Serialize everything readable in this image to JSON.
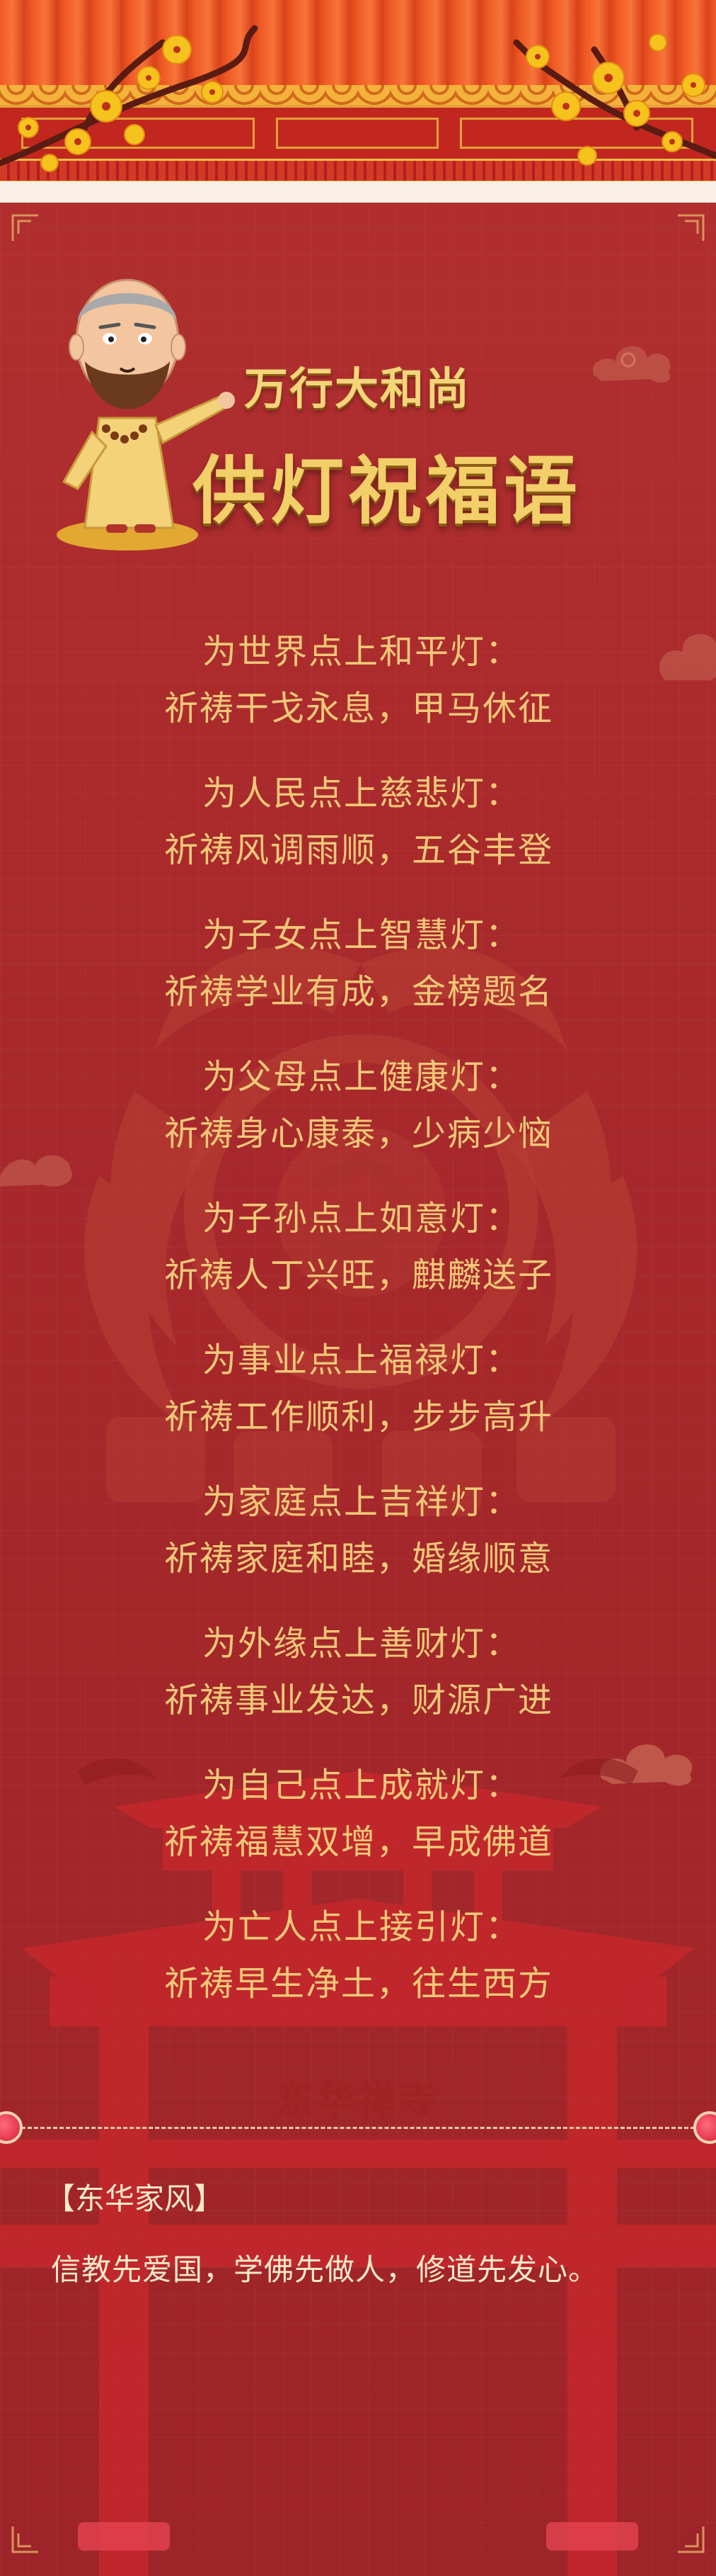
{
  "header": {
    "title_small": "万行大和尚",
    "title_big": "供灯祝福语"
  },
  "blessings": [
    {
      "line1": "为世界点上和平灯：",
      "line2": "祈祷干戈永息，甲马休征"
    },
    {
      "line1": "为人民点上慈悲灯：",
      "line2": "祈祷风调雨顺，五谷丰登"
    },
    {
      "line1": "为子女点上智慧灯：",
      "line2": "祈祷学业有成，金榜题名"
    },
    {
      "line1": "为父母点上健康灯：",
      "line2": "祈祷身心康泰，少病少恼"
    },
    {
      "line1": "为子孙点上如意灯：",
      "line2": "祈祷人丁兴旺，麒麟送子"
    },
    {
      "line1": "为事业点上福禄灯：",
      "line2": "祈祷工作顺利，步步高升"
    },
    {
      "line1": "为家庭点上吉祥灯：",
      "line2": "祈祷家庭和睦，婚缘顺意"
    },
    {
      "line1": "为外缘点上善财灯：",
      "line2": "祈祷事业发达，财源广进"
    },
    {
      "line1": "为自己点上成就灯：",
      "line2": "祈祷福慧双增，早成佛道"
    },
    {
      "line1": "为亡人点上接引灯：",
      "line2": "祈祷早生净土，往生西方"
    }
  ],
  "temple": {
    "name": "东华禅寺"
  },
  "footer": {
    "section_title": "【东华家风】",
    "motto": "信教先爱国，学佛先做人，修道先发心。"
  },
  "colors": {
    "background": "#a8292c",
    "gold_text": "#f1c878",
    "light_text": "#f7e8c9"
  }
}
